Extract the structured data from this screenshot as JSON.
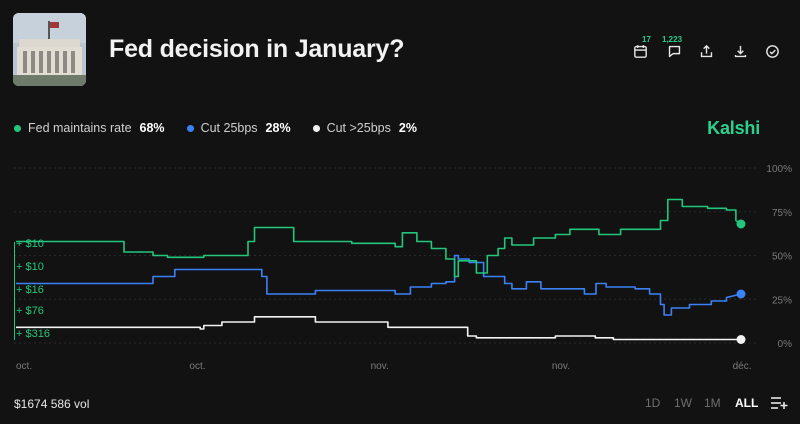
{
  "market": {
    "title": "Fed decision in January?",
    "brand": "Kalshi",
    "volume": "$1674 586 vol",
    "thumbnail_icon": "federal-reserve-building-photo"
  },
  "actions": [
    {
      "name": "calendar-icon",
      "badge": "17"
    },
    {
      "name": "comment-icon",
      "badge": "1,223"
    },
    {
      "name": "share-icon",
      "badge": ""
    },
    {
      "name": "download-icon",
      "badge": ""
    },
    {
      "name": "check-circle-icon",
      "badge": ""
    }
  ],
  "legend": [
    {
      "label": "Fed maintains rate",
      "value": "68%",
      "color": "#22c67c"
    },
    {
      "label": "Cut 25bps",
      "value": "28%",
      "color": "#3b82f6"
    },
    {
      "label": "Cut >25bps",
      "value": "2%",
      "color": "#f2f2f2"
    }
  ],
  "ranges": [
    "1D",
    "1W",
    "1M",
    "ALL"
  ],
  "active_range": "ALL",
  "chart_data": {
    "type": "line",
    "ylim": [
      0,
      100
    ],
    "y_ticks": [
      "100%",
      "75%",
      "50%",
      "25%",
      "0%"
    ],
    "y_tick_values": [
      100,
      75,
      50,
      25,
      0
    ],
    "x_ticks": [
      "oct.",
      "oct.",
      "nov.",
      "nov.",
      "déc."
    ],
    "x_tick_positions": [
      0,
      0.2502,
      0.5001,
      0.7501,
      0.9995
    ],
    "grid": true,
    "trade_labels": [
      "+ $10",
      "+ $10",
      "+ $16",
      "+ $76",
      "+ $316"
    ],
    "series": [
      {
        "name": "Fed maintains rate",
        "color": "#22c67c",
        "end_label": "68%",
        "points": [
          [
            0,
            58
          ],
          [
            0.149,
            58
          ],
          [
            0.149,
            52
          ],
          [
            0.189,
            52
          ],
          [
            0.189,
            50
          ],
          [
            0.209,
            50
          ],
          [
            0.209,
            49
          ],
          [
            0.259,
            49
          ],
          [
            0.259,
            50
          ],
          [
            0.32,
            50
          ],
          [
            0.32,
            58
          ],
          [
            0.329,
            58
          ],
          [
            0.329,
            66
          ],
          [
            0.383,
            66
          ],
          [
            0.383,
            58
          ],
          [
            0.463,
            58
          ],
          [
            0.463,
            57
          ],
          [
            0.513,
            57
          ],
          [
            0.513,
            57
          ],
          [
            0.523,
            57
          ],
          [
            0.523,
            55
          ],
          [
            0.533,
            55
          ],
          [
            0.533,
            63
          ],
          [
            0.553,
            63
          ],
          [
            0.553,
            58
          ],
          [
            0.573,
            58
          ],
          [
            0.573,
            54
          ],
          [
            0.593,
            54
          ],
          [
            0.593,
            48
          ],
          [
            0.605,
            48
          ],
          [
            0.605,
            38
          ],
          [
            0.61,
            38
          ],
          [
            0.61,
            47
          ],
          [
            0.635,
            47
          ],
          [
            0.635,
            40
          ],
          [
            0.65,
            40
          ],
          [
            0.65,
            50
          ],
          [
            0.665,
            50
          ],
          [
            0.665,
            54
          ],
          [
            0.674,
            54
          ],
          [
            0.674,
            60
          ],
          [
            0.684,
            60
          ],
          [
            0.684,
            56
          ],
          [
            0.714,
            56
          ],
          [
            0.714,
            60
          ],
          [
            0.744,
            60
          ],
          [
            0.744,
            62
          ],
          [
            0.764,
            62
          ],
          [
            0.764,
            65
          ],
          [
            0.804,
            65
          ],
          [
            0.804,
            62
          ],
          [
            0.834,
            62
          ],
          [
            0.834,
            65
          ],
          [
            0.889,
            65
          ],
          [
            0.889,
            70
          ],
          [
            0.899,
            70
          ],
          [
            0.899,
            82
          ],
          [
            0.919,
            82
          ],
          [
            0.919,
            78
          ],
          [
            0.954,
            78
          ],
          [
            0.954,
            77
          ],
          [
            0.98,
            77
          ],
          [
            0.98,
            76
          ],
          [
            0.993,
            76
          ],
          [
            0.993,
            70
          ],
          [
            1.0,
            68
          ]
        ]
      },
      {
        "name": "Cut 25bps",
        "color": "#3b82f6",
        "end_label": "28%",
        "points": [
          [
            0,
            34
          ],
          [
            0.189,
            34
          ],
          [
            0.189,
            38
          ],
          [
            0.219,
            38
          ],
          [
            0.219,
            42
          ],
          [
            0.339,
            42
          ],
          [
            0.339,
            38
          ],
          [
            0.346,
            38
          ],
          [
            0.346,
            28
          ],
          [
            0.413,
            28
          ],
          [
            0.413,
            30
          ],
          [
            0.523,
            30
          ],
          [
            0.523,
            28
          ],
          [
            0.544,
            28
          ],
          [
            0.544,
            32
          ],
          [
            0.573,
            32
          ],
          [
            0.573,
            34
          ],
          [
            0.593,
            34
          ],
          [
            0.593,
            35
          ],
          [
            0.605,
            35
          ],
          [
            0.605,
            50
          ],
          [
            0.61,
            50
          ],
          [
            0.61,
            48
          ],
          [
            0.625,
            48
          ],
          [
            0.625,
            46
          ],
          [
            0.645,
            46
          ],
          [
            0.645,
            38
          ],
          [
            0.674,
            38
          ],
          [
            0.674,
            34
          ],
          [
            0.684,
            34
          ],
          [
            0.684,
            31
          ],
          [
            0.704,
            31
          ],
          [
            0.704,
            35
          ],
          [
            0.724,
            35
          ],
          [
            0.724,
            31
          ],
          [
            0.784,
            31
          ],
          [
            0.784,
            28
          ],
          [
            0.8,
            28
          ],
          [
            0.8,
            34
          ],
          [
            0.814,
            34
          ],
          [
            0.814,
            32
          ],
          [
            0.854,
            32
          ],
          [
            0.854,
            31
          ],
          [
            0.874,
            31
          ],
          [
            0.874,
            28
          ],
          [
            0.889,
            28
          ],
          [
            0.889,
            22
          ],
          [
            0.894,
            22
          ],
          [
            0.894,
            16
          ],
          [
            0.904,
            16
          ],
          [
            0.904,
            20
          ],
          [
            0.929,
            20
          ],
          [
            0.929,
            22
          ],
          [
            0.959,
            22
          ],
          [
            0.959,
            24
          ],
          [
            0.98,
            24
          ],
          [
            0.98,
            26
          ],
          [
            1.0,
            28
          ]
        ]
      },
      {
        "name": "Cut >25bps",
        "color": "#f2f2f2",
        "end_label": "2%",
        "points": [
          [
            0,
            9
          ],
          [
            0.254,
            9
          ],
          [
            0.254,
            8
          ],
          [
            0.259,
            8
          ],
          [
            0.259,
            10
          ],
          [
            0.284,
            10
          ],
          [
            0.284,
            12
          ],
          [
            0.329,
            12
          ],
          [
            0.329,
            15
          ],
          [
            0.413,
            15
          ],
          [
            0.413,
            12
          ],
          [
            0.513,
            12
          ],
          [
            0.513,
            9
          ],
          [
            0.623,
            9
          ],
          [
            0.623,
            4
          ],
          [
            0.635,
            4
          ],
          [
            0.635,
            3
          ],
          [
            0.744,
            3
          ],
          [
            0.744,
            4
          ],
          [
            0.799,
            4
          ],
          [
            0.799,
            3
          ],
          [
            0.824,
            3
          ],
          [
            0.824,
            2
          ],
          [
            1.0,
            2
          ]
        ]
      }
    ]
  }
}
